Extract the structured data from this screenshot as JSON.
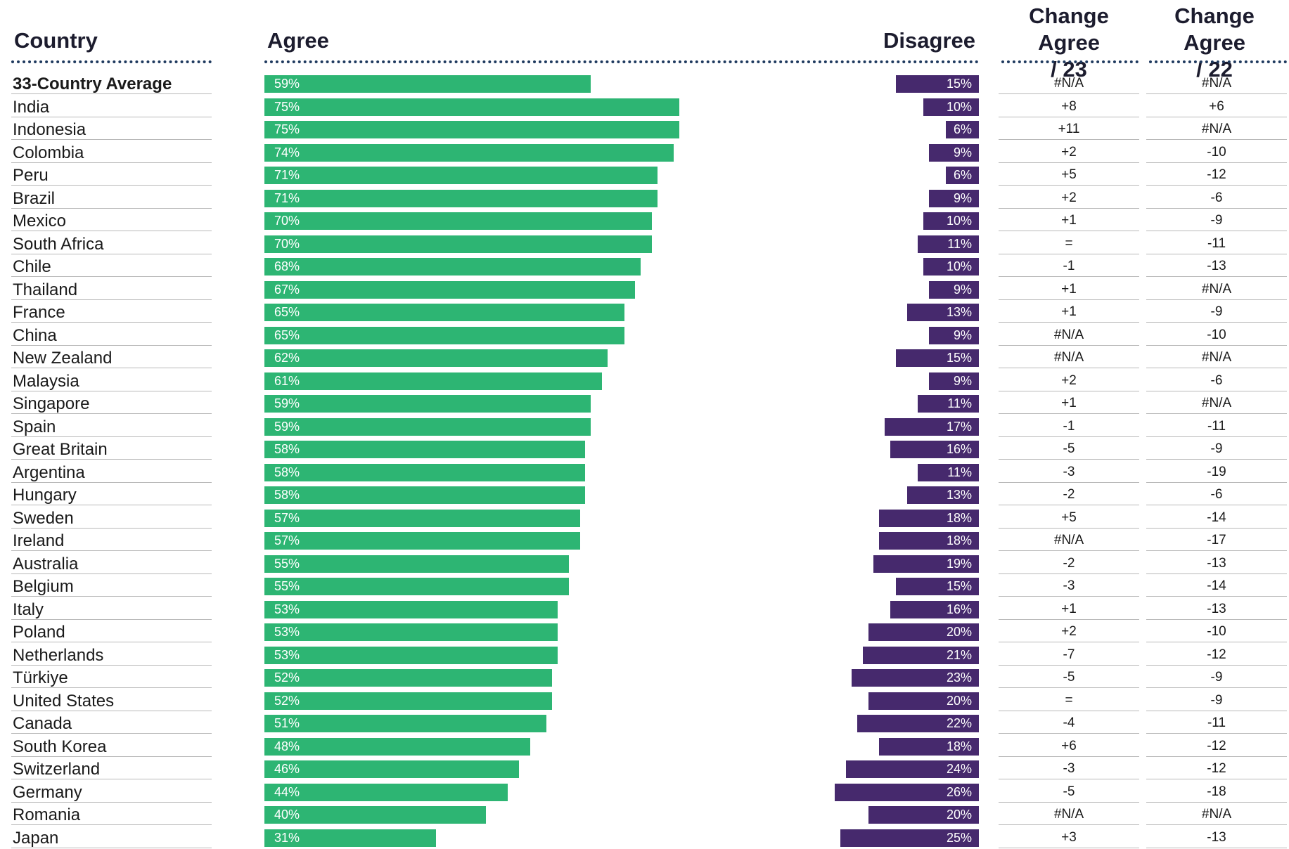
{
  "headers": {
    "country": "Country",
    "agree": "Agree",
    "disagree": "Disagree",
    "change23": "Change Agree\n/ 23",
    "change22": "Change Agree\n/ 22"
  },
  "colors": {
    "agree": "#2db573",
    "disagree": "#46296d",
    "divider": "#1f3a5f"
  },
  "chart_data": {
    "type": "bar",
    "orientation": "horizontal-diverging-table",
    "xlim": [
      0,
      100
    ],
    "series": [
      {
        "name": "Agree",
        "values": [
          59,
          75,
          75,
          74,
          71,
          71,
          70,
          70,
          68,
          67,
          65,
          65,
          62,
          61,
          59,
          59,
          58,
          58,
          58,
          57,
          57,
          55,
          55,
          53,
          53,
          53,
          52,
          52,
          51,
          48,
          46,
          44,
          40,
          31
        ]
      },
      {
        "name": "Disagree",
        "values": [
          15,
          10,
          6,
          9,
          6,
          9,
          10,
          11,
          10,
          9,
          13,
          9,
          15,
          9,
          11,
          17,
          16,
          11,
          13,
          18,
          18,
          19,
          15,
          16,
          20,
          21,
          23,
          20,
          22,
          18,
          24,
          26,
          20,
          25
        ]
      }
    ],
    "categories": [
      "33-Country Average",
      "India",
      "Indonesia",
      "Colombia",
      "Peru",
      "Brazil",
      "Mexico",
      "South Africa",
      "Chile",
      "Thailand",
      "France",
      "China",
      "New Zealand",
      "Malaysia",
      "Singapore",
      "Spain",
      "Great Britain",
      "Argentina",
      "Hungary",
      "Sweden",
      "Ireland",
      "Australia",
      "Belgium",
      "Italy",
      "Poland",
      "Netherlands",
      "Türkiye",
      "United States",
      "Canada",
      "South Korea",
      "Switzerland",
      "Germany",
      "Romania",
      "Japan"
    ],
    "rows": [
      {
        "country": "33-Country Average",
        "agree": 59,
        "disagree": 15,
        "agree_label": "59%",
        "disagree_label": "15%",
        "change23": "#N/A",
        "change22": "#N/A",
        "bold": true
      },
      {
        "country": "India",
        "agree": 75,
        "disagree": 10,
        "agree_label": "75%",
        "disagree_label": "10%",
        "change23": "+8",
        "change22": "+6"
      },
      {
        "country": "Indonesia",
        "agree": 75,
        "disagree": 6,
        "agree_label": "75%",
        "disagree_label": "6%",
        "change23": "+11",
        "change22": "#N/A"
      },
      {
        "country": "Colombia",
        "agree": 74,
        "disagree": 9,
        "agree_label": "74%",
        "disagree_label": "9%",
        "change23": "+2",
        "change22": "-10"
      },
      {
        "country": "Peru",
        "agree": 71,
        "disagree": 6,
        "agree_label": "71%",
        "disagree_label": "6%",
        "change23": "+5",
        "change22": "-12"
      },
      {
        "country": "Brazil",
        "agree": 71,
        "disagree": 9,
        "agree_label": "71%",
        "disagree_label": "9%",
        "change23": "+2",
        "change22": "-6"
      },
      {
        "country": "Mexico",
        "agree": 70,
        "disagree": 10,
        "agree_label": "70%",
        "disagree_label": "10%",
        "change23": "+1",
        "change22": "-9"
      },
      {
        "country": "South Africa",
        "agree": 70,
        "disagree": 11,
        "agree_label": "70%",
        "disagree_label": "11%",
        "change23": "=",
        "change22": "-11"
      },
      {
        "country": "Chile",
        "agree": 68,
        "disagree": 10,
        "agree_label": "68%",
        "disagree_label": "10%",
        "change23": "-1",
        "change22": "-13"
      },
      {
        "country": "Thailand",
        "agree": 67,
        "disagree": 9,
        "agree_label": "67%",
        "disagree_label": "9%",
        "change23": "+1",
        "change22": "#N/A"
      },
      {
        "country": "France",
        "agree": 65,
        "disagree": 13,
        "agree_label": "65%",
        "disagree_label": "13%",
        "change23": "+1",
        "change22": "-9"
      },
      {
        "country": "China",
        "agree": 65,
        "disagree": 9,
        "agree_label": "65%",
        "disagree_label": "9%",
        "change23": "#N/A",
        "change22": "-10"
      },
      {
        "country": "New Zealand",
        "agree": 62,
        "disagree": 15,
        "agree_label": "62%",
        "disagree_label": "15%",
        "change23": "#N/A",
        "change22": "#N/A"
      },
      {
        "country": "Malaysia",
        "agree": 61,
        "disagree": 9,
        "agree_label": "61%",
        "disagree_label": "9%",
        "change23": "+2",
        "change22": "-6"
      },
      {
        "country": "Singapore",
        "agree": 59,
        "disagree": 11,
        "agree_label": "59%",
        "disagree_label": "11%",
        "change23": "+1",
        "change22": "#N/A"
      },
      {
        "country": "Spain",
        "agree": 59,
        "disagree": 17,
        "agree_label": "59%",
        "disagree_label": "17%",
        "change23": "-1",
        "change22": "-11"
      },
      {
        "country": "Great Britain",
        "agree": 58,
        "disagree": 16,
        "agree_label": "58%",
        "disagree_label": "16%",
        "change23": "-5",
        "change22": "-9"
      },
      {
        "country": "Argentina",
        "agree": 58,
        "disagree": 11,
        "agree_label": "58%",
        "disagree_label": "11%",
        "change23": "-3",
        "change22": "-19"
      },
      {
        "country": "Hungary",
        "agree": 58,
        "disagree": 13,
        "agree_label": "58%",
        "disagree_label": "13%",
        "change23": "-2",
        "change22": "-6"
      },
      {
        "country": "Sweden",
        "agree": 57,
        "disagree": 18,
        "agree_label": "57%",
        "disagree_label": "18%",
        "change23": "+5",
        "change22": "-14"
      },
      {
        "country": "Ireland",
        "agree": 57,
        "disagree": 18,
        "agree_label": "57%",
        "disagree_label": "18%",
        "change23": "#N/A",
        "change22": "-17"
      },
      {
        "country": "Australia",
        "agree": 55,
        "disagree": 19,
        "agree_label": "55%",
        "disagree_label": "19%",
        "change23": "-2",
        "change22": "-13"
      },
      {
        "country": "Belgium",
        "agree": 55,
        "disagree": 15,
        "agree_label": "55%",
        "disagree_label": "15%",
        "change23": "-3",
        "change22": "-14"
      },
      {
        "country": "Italy",
        "agree": 53,
        "disagree": 16,
        "agree_label": "53%",
        "disagree_label": "16%",
        "change23": "+1",
        "change22": "-13"
      },
      {
        "country": "Poland",
        "agree": 53,
        "disagree": 20,
        "agree_label": "53%",
        "disagree_label": "20%",
        "change23": "+2",
        "change22": "-10"
      },
      {
        "country": "Netherlands",
        "agree": 53,
        "disagree": 21,
        "agree_label": "53%",
        "disagree_label": "21%",
        "change23": "-7",
        "change22": "-12"
      },
      {
        "country": "Türkiye",
        "agree": 52,
        "disagree": 23,
        "agree_label": "52%",
        "disagree_label": "23%",
        "change23": "-5",
        "change22": "-9"
      },
      {
        "country": "United States",
        "agree": 52,
        "disagree": 20,
        "agree_label": "52%",
        "disagree_label": "20%",
        "change23": "=",
        "change22": "-9"
      },
      {
        "country": "Canada",
        "agree": 51,
        "disagree": 22,
        "agree_label": "51%",
        "disagree_label": "22%",
        "change23": "-4",
        "change22": "-11"
      },
      {
        "country": "South Korea",
        "agree": 48,
        "disagree": 18,
        "agree_label": "48%",
        "disagree_label": "18%",
        "change23": "+6",
        "change22": "-12"
      },
      {
        "country": "Switzerland",
        "agree": 46,
        "disagree": 24,
        "agree_label": "46%",
        "disagree_label": "24%",
        "change23": "-3",
        "change22": "-12"
      },
      {
        "country": "Germany",
        "agree": 44,
        "disagree": 26,
        "agree_label": "44%",
        "disagree_label": "26%",
        "change23": "-5",
        "change22": "-18"
      },
      {
        "country": "Romania",
        "agree": 40,
        "disagree": 20,
        "agree_label": "40%",
        "disagree_label": "20%",
        "change23": "#N/A",
        "change22": "#N/A"
      },
      {
        "country": "Japan",
        "agree": 31,
        "disagree": 25,
        "agree_label": "31%",
        "disagree_label": "25%",
        "change23": "+3",
        "change22": "-13"
      }
    ]
  }
}
